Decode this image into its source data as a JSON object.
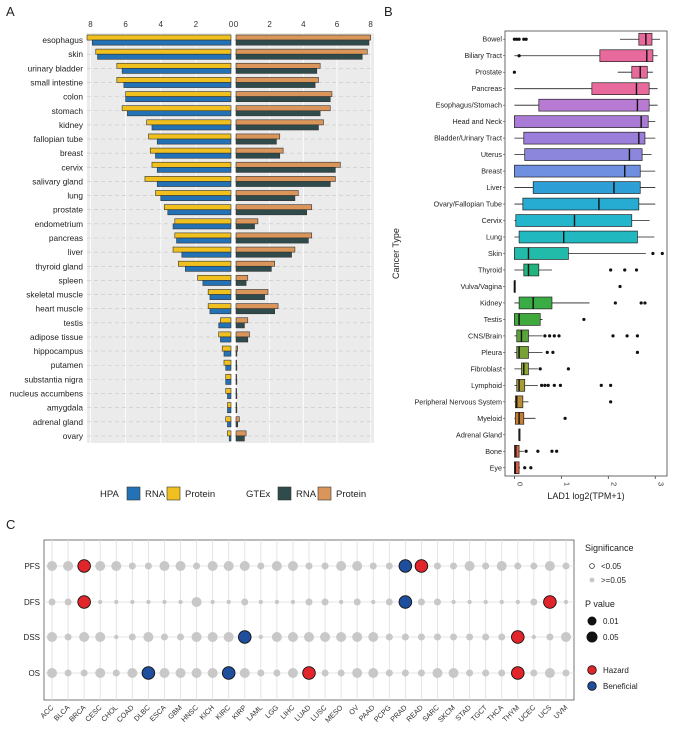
{
  "panels": {
    "a": "A",
    "b": "B",
    "c": "C"
  },
  "chart_data": [
    {
      "type": "bar",
      "panel": "A",
      "orientation": "horizontal",
      "xlim_left": [
        0,
        8.2
      ],
      "xlim_right": [
        0,
        8.2
      ],
      "ticks_left": [
        "8",
        "6",
        "4",
        "2",
        "0"
      ],
      "ticks_right": [
        "0",
        "2",
        "4",
        "6",
        "8"
      ],
      "categories": [
        "esophagus",
        "skin",
        "urinary bladder",
        "small intestine",
        "colon",
        "stomach",
        "kidney",
        "fallopian tube",
        "breast",
        "cervix",
        "salivary gland",
        "lung",
        "prostate",
        "endometrium",
        "pancreas",
        "liver",
        "thyroid gland",
        "spleen",
        "skeletal muscle",
        "heart muscle",
        "testis",
        "adipose tissue",
        "hippocampus",
        "putamen",
        "substantia nigra",
        "nucleus accumbens",
        "amygdala",
        "adrenal gland",
        "ovary"
      ],
      "legend": {
        "hpa_title": "HPA",
        "gtex_title": "GTEx",
        "rna": "RNA",
        "protein": "Protein"
      },
      "colors": {
        "hpa_rna": "#2272b5",
        "hpa_protein": "#f0c11e",
        "gtex_rna": "#2f4b4b",
        "gtex_protein": "#d9955a",
        "panel_bg": "#ebebeb"
      },
      "series": [
        {
          "name": "HPA Protein",
          "values": [
            8.2,
            7.7,
            6.5,
            6.5,
            6.0,
            6.2,
            4.8,
            4.7,
            4.6,
            4.5,
            4.9,
            4.3,
            3.8,
            3.2,
            3.2,
            3.3,
            3.0,
            1.9,
            1.3,
            1.3,
            0.6,
            0.7,
            0.5,
            0.4,
            0.3,
            0.3,
            0.2,
            0.3,
            0.2
          ]
        },
        {
          "name": "HPA RNA",
          "values": [
            7.9,
            7.6,
            6.2,
            6.1,
            6.0,
            5.9,
            4.5,
            4.2,
            4.3,
            4.2,
            4.2,
            4.0,
            3.6,
            3.3,
            3.1,
            2.8,
            2.6,
            1.6,
            1.2,
            1.2,
            0.7,
            0.6,
            0.4,
            0.3,
            0.3,
            0.2,
            0.2,
            0.2,
            0.1
          ]
        },
        {
          "name": "GTEx Protein",
          "values": [
            8.0,
            7.8,
            5.0,
            4.9,
            5.7,
            5.6,
            5.2,
            2.6,
            2.8,
            6.2,
            5.9,
            3.7,
            4.5,
            1.3,
            4.5,
            3.5,
            2.3,
            0.7,
            1.9,
            2.5,
            0.7,
            0.8,
            0.1,
            0.0,
            0.0,
            0.0,
            0.0,
            0.2,
            0.6
          ]
        },
        {
          "name": "GTEx RNA",
          "values": [
            7.9,
            7.5,
            4.8,
            4.7,
            5.6,
            5.0,
            4.9,
            2.4,
            2.6,
            5.9,
            5.6,
            3.5,
            4.2,
            1.1,
            4.3,
            3.3,
            2.1,
            0.6,
            1.7,
            2.3,
            0.5,
            0.7,
            0.05,
            0.05,
            0.05,
            0.05,
            0.05,
            0.1,
            0.5
          ]
        }
      ]
    },
    {
      "type": "box",
      "panel": "B",
      "ylabel": "Cancer Type",
      "xlabel": "LAD1 log2(TPM+1)",
      "xlim": [
        -0.2,
        3.25
      ],
      "xticks": [
        0,
        1,
        2,
        3
      ],
      "categories": [
        "Bowel",
        "Biliary Tract",
        "Prostate",
        "Pancreas",
        "Esophagus/Stomach",
        "Head and Neck",
        "Bladder/Urinary Tract",
        "Uterus",
        "Breast",
        "Liver",
        "Ovary/Fallopian Tube",
        "Cervix",
        "Lung",
        "Skin",
        "Thyroid",
        "Vulva/Vagina",
        "Kidney",
        "Testis",
        "CNS/Brain",
        "Pleura",
        "Fibroblast",
        "Lymphoid",
        "Peripheral Nervous System",
        "Myeloid",
        "Adrenal Gland",
        "Bone",
        "Eye"
      ],
      "colors": [
        "#e8699c",
        "#e8699c",
        "#e8699c",
        "#e8699c",
        "#b77bd3",
        "#a97bd6",
        "#9a7ed9",
        "#8c86dc",
        "#6f8fe0",
        "#2d9ed6",
        "#26abd3",
        "#22b6cc",
        "#21b9bf",
        "#22baa8",
        "#21b47e",
        "#27ac5e",
        "#3aac45",
        "#3fa93b",
        "#5aa23a",
        "#78a238",
        "#8ea537",
        "#a79d34",
        "#b98c35",
        "#c57e35",
        "#d07439",
        "#d96a3f",
        "#dc5f46"
      ],
      "boxes": [
        [
          2.25,
          2.65,
          2.8,
          2.93,
          3.1
        ],
        [
          0.0,
          1.82,
          2.82,
          2.95,
          3.05
        ],
        [
          2.2,
          2.5,
          2.68,
          2.83,
          2.95
        ],
        [
          0.0,
          1.65,
          2.6,
          2.87,
          3.05
        ],
        [
          0.0,
          0.52,
          2.62,
          2.87,
          3.05
        ],
        [
          0.0,
          0.0,
          2.7,
          2.85,
          3.0
        ],
        [
          0.0,
          0.2,
          2.65,
          2.78,
          3.0
        ],
        [
          0.0,
          0.22,
          2.45,
          2.72,
          2.92
        ],
        [
          0.0,
          0.0,
          2.35,
          2.68,
          3.0
        ],
        [
          0.0,
          0.4,
          2.12,
          2.68,
          3.0
        ],
        [
          0.0,
          0.18,
          1.8,
          2.65,
          3.0
        ],
        [
          0.0,
          0.03,
          1.28,
          2.5,
          2.88
        ],
        [
          0.0,
          0.1,
          1.05,
          2.62,
          2.98
        ],
        [
          0.0,
          0.0,
          0.3,
          1.15,
          2.8
        ],
        [
          0.0,
          0.2,
          0.3,
          0.52,
          0.8
        ],
        [
          0.0,
          0.0,
          0.0,
          0.0,
          0.0
        ],
        [
          0.0,
          0.1,
          0.4,
          0.8,
          1.6
        ],
        [
          0.0,
          0.0,
          0.1,
          0.55,
          0.6
        ],
        [
          0.0,
          0.05,
          0.15,
          0.3,
          0.6
        ],
        [
          0.0,
          0.05,
          0.1,
          0.3,
          0.6
        ],
        [
          0.0,
          0.15,
          0.2,
          0.3,
          0.5
        ],
        [
          0.0,
          0.05,
          0.1,
          0.22,
          0.5
        ],
        [
          0.0,
          0.02,
          0.05,
          0.18,
          0.3
        ],
        [
          0.0,
          0.02,
          0.1,
          0.2,
          0.45
        ],
        [
          0.1,
          0.1,
          0.1,
          0.1,
          0.1
        ],
        [
          0.0,
          0.0,
          0.03,
          0.1,
          0.2
        ],
        [
          0.0,
          0.0,
          0.02,
          0.1,
          0.12
        ]
      ],
      "outliers": [
        [
          0.0,
          0.05,
          0.1,
          0.2,
          0.25
        ],
        [
          0.1
        ],
        [
          0.0
        ],
        [],
        [],
        [],
        [],
        [],
        [],
        [],
        [],
        [],
        [],
        [
          2.95,
          3.15
        ],
        [
          2.05,
          2.35,
          2.6
        ],
        [
          2.25
        ],
        [
          2.15,
          2.7,
          2.78
        ],
        [
          1.48
        ],
        [
          0.65,
          0.75,
          0.85,
          0.95,
          2.1,
          2.4,
          2.62
        ],
        [
          0.7,
          0.82,
          2.62
        ],
        [
          0.55,
          1.15
        ],
        [
          0.58,
          0.65,
          0.72,
          0.85,
          0.98,
          1.85,
          2.05
        ],
        [
          2.05
        ],
        [
          1.08
        ],
        [],
        [
          0.25,
          0.5,
          0.8,
          0.9
        ],
        [
          0.22,
          0.35
        ]
      ]
    },
    {
      "type": "scatter",
      "panel": "C",
      "categories": [
        "ACC",
        "BLCA",
        "BRCA",
        "CESC",
        "CHOL",
        "COAD",
        "DLBC",
        "ESCA",
        "GBM",
        "HNSC",
        "KICH",
        "KIRC",
        "KIRP",
        "LAML",
        "LGG",
        "LIHC",
        "LUAD",
        "LUSC",
        "MESO",
        "OV",
        "PAAD",
        "PCPG",
        "PRAD",
        "READ",
        "SARC",
        "SKCM",
        "STAD",
        "TGCT",
        "THCA",
        "THYM",
        "UCEC",
        "UCS",
        "UVM"
      ],
      "rows": [
        "PFS",
        "DFS",
        "DSS",
        "OS"
      ],
      "legend": {
        "significance_title": "Significance",
        "sig_lt": "<0.05",
        "sig_ge": ">=0.05",
        "p_title": "P value",
        "p_small": "0.01",
        "p_large": "0.05",
        "hazard": "Hazard",
        "beneficial": "Beneficial"
      },
      "colors": {
        "hazard": "#e2252b",
        "beneficial": "#1f4e9c",
        "nonsig": "#c8c8c8"
      },
      "sizes": {
        "PFS": [
          3,
          3,
          2,
          3,
          3,
          2,
          2,
          3,
          3,
          2,
          3,
          3,
          3,
          2,
          3,
          3,
          2,
          2,
          3,
          3,
          2,
          2,
          2,
          2,
          2,
          2,
          3,
          2,
          3,
          2,
          2,
          3,
          2
        ],
        "DFS": [
          2,
          2,
          2,
          1,
          1,
          1,
          1,
          1,
          1,
          3,
          1,
          1,
          2,
          1,
          1,
          1,
          2,
          2,
          1,
          2,
          1,
          2,
          2,
          2,
          2,
          1,
          1,
          1,
          1,
          1,
          2,
          2,
          1
        ],
        "DSS": [
          3,
          2,
          3,
          3,
          1,
          2,
          3,
          2,
          2,
          3,
          3,
          3,
          3,
          1,
          3,
          3,
          3,
          3,
          3,
          3,
          3,
          2,
          2,
          2,
          2,
          2,
          2,
          2,
          2,
          2,
          1,
          2,
          3
        ],
        "OS": [
          3,
          2,
          2,
          3,
          2,
          3,
          3,
          3,
          3,
          3,
          3,
          3,
          3,
          2,
          2,
          3,
          3,
          2,
          2,
          3,
          3,
          2,
          2,
          2,
          3,
          3,
          2,
          2,
          2,
          2,
          2,
          3,
          2
        ]
      },
      "significant": [
        {
          "row": "PFS",
          "cancer": "BRCA",
          "effect": "Hazard"
        },
        {
          "row": "PFS",
          "cancer": "PRAD",
          "effect": "Beneficial"
        },
        {
          "row": "PFS",
          "cancer": "READ",
          "effect": "Hazard"
        },
        {
          "row": "DFS",
          "cancer": "BRCA",
          "effect": "Hazard"
        },
        {
          "row": "DFS",
          "cancer": "PRAD",
          "effect": "Beneficial"
        },
        {
          "row": "DFS",
          "cancer": "UCS",
          "effect": "Hazard"
        },
        {
          "row": "DSS",
          "cancer": "KIRP",
          "effect": "Beneficial"
        },
        {
          "row": "DSS",
          "cancer": "THYM",
          "effect": "Hazard"
        },
        {
          "row": "OS",
          "cancer": "DLBC",
          "effect": "Beneficial"
        },
        {
          "row": "OS",
          "cancer": "KIRC",
          "effect": "Beneficial"
        },
        {
          "row": "OS",
          "cancer": "LUAD",
          "effect": "Hazard"
        },
        {
          "row": "OS",
          "cancer": "THYM",
          "effect": "Hazard"
        }
      ]
    }
  ]
}
